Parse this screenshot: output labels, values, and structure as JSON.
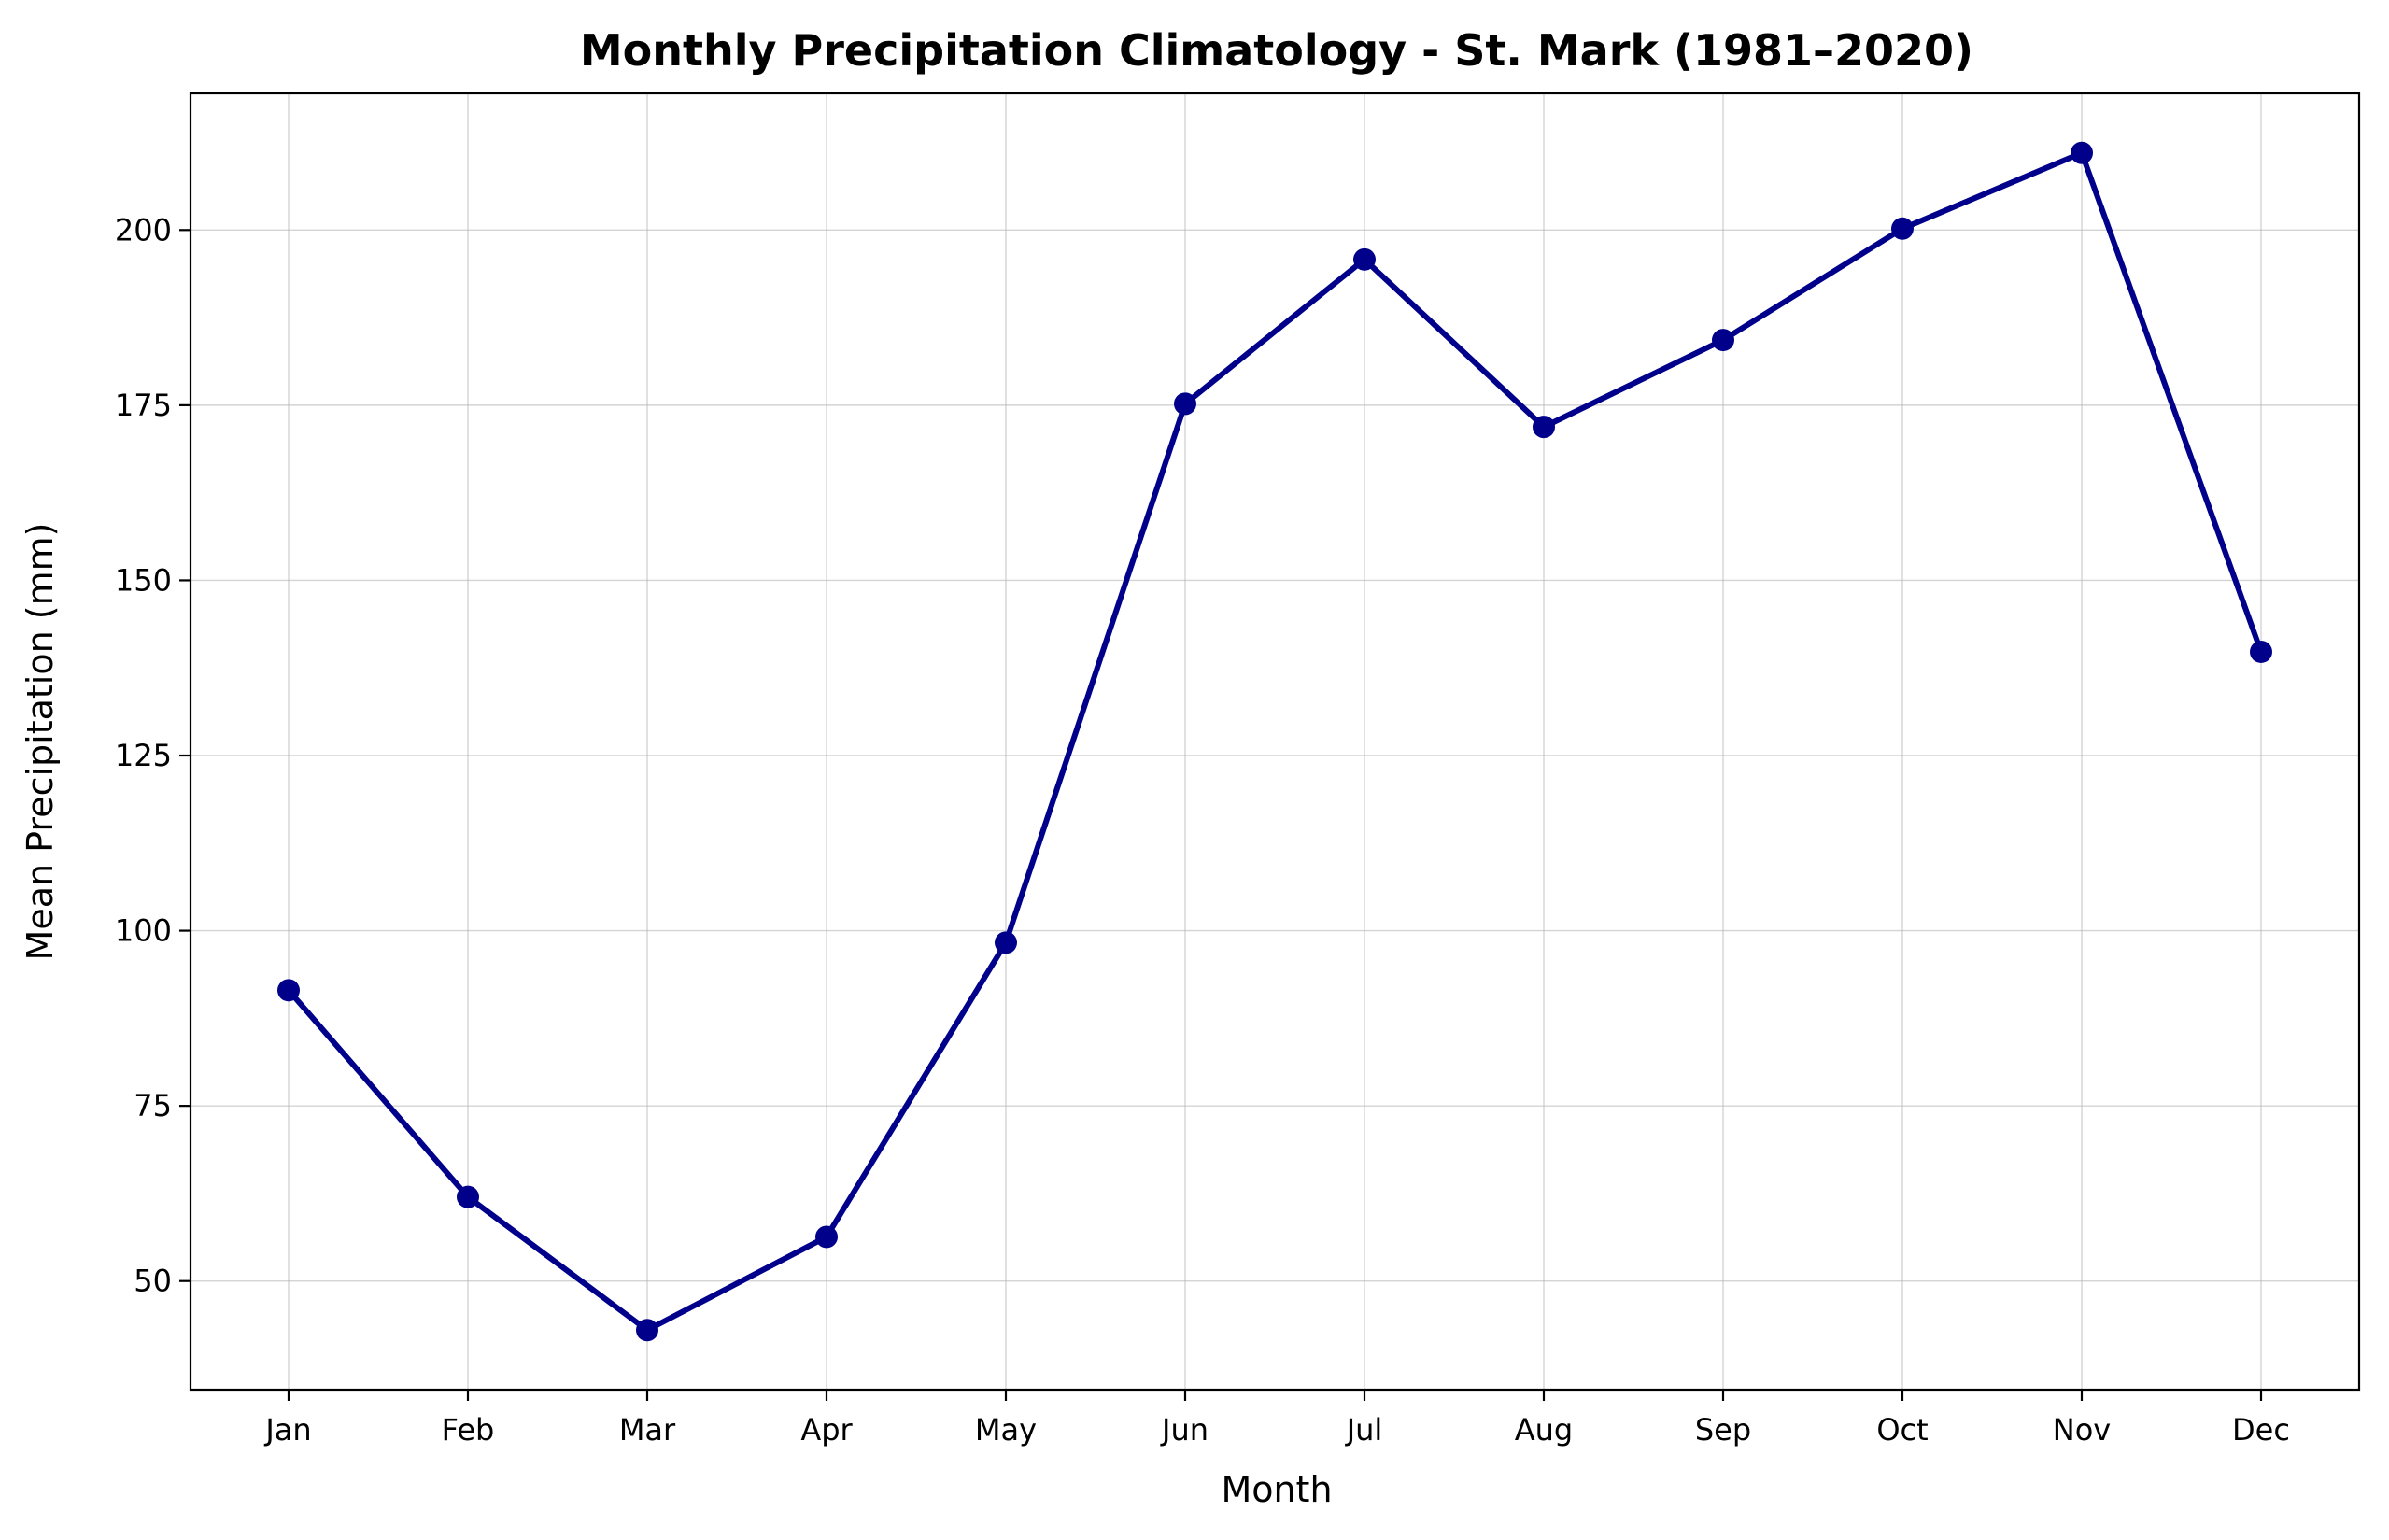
{
  "chart_data": {
    "type": "line",
    "title": "Monthly Precipitation Climatology - St. Mark (1981–2020)",
    "xlabel": "Month",
    "ylabel": "Mean Precipitation (mm)",
    "categories": [
      "Jan",
      "Feb",
      "Mar",
      "Apr",
      "May",
      "Jun",
      "Jul",
      "Aug",
      "Sep",
      "Oct",
      "Nov",
      "Dec"
    ],
    "series": [
      {
        "values": [
          91.5,
          62.0,
          43.0,
          56.3,
          98.3,
          175.2,
          195.8,
          171.9,
          184.3,
          200.2,
          211.0,
          139.8
        ],
        "color": "#00008b",
        "marker": "circle"
      }
    ],
    "ylim": [
      34.5,
      219.5
    ],
    "yticks": [
      50,
      75,
      100,
      125,
      150,
      175,
      200
    ],
    "grid": true,
    "legend": "none"
  }
}
